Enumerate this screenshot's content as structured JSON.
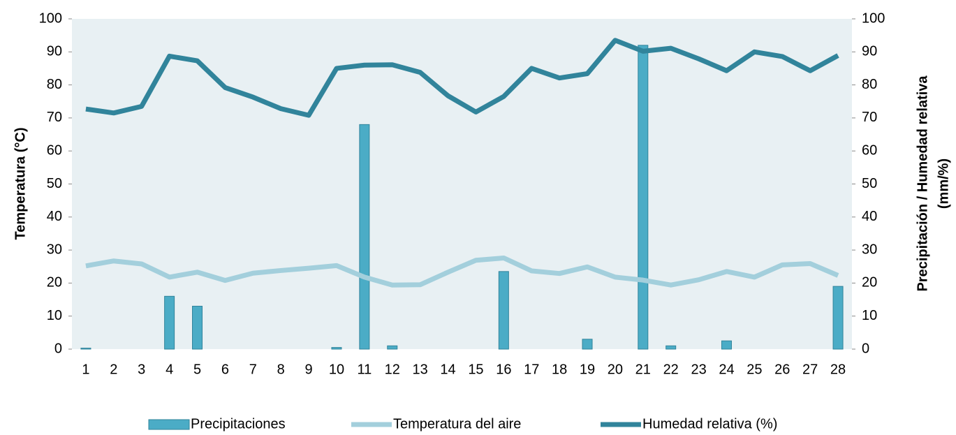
{
  "chart_data": {
    "type": "combo",
    "ylabel": "Temperatura (°C)",
    "y2label": [
      "Precipitación / Humedad relativa",
      "(mm/%)"
    ],
    "categories": [
      "1",
      "2",
      "3",
      "4",
      "5",
      "6",
      "7",
      "8",
      "9",
      "10",
      "11",
      "12",
      "13",
      "14",
      "15",
      "16",
      "17",
      "18",
      "19",
      "20",
      "21",
      "22",
      "23",
      "24",
      "25",
      "26",
      "27",
      "28"
    ],
    "ylim": [
      0,
      100
    ],
    "yticks": [
      0,
      10,
      20,
      30,
      40,
      50,
      60,
      70,
      80,
      90,
      100
    ],
    "y2lim": [
      0,
      100
    ],
    "y2ticks": [
      0,
      10,
      20,
      30,
      40,
      50,
      60,
      70,
      80,
      90,
      100
    ],
    "plot_background": "#e8f0f3",
    "legend": "bottom",
    "series": [
      {
        "name": "Precipitaciones",
        "type": "bar",
        "axis": "y2",
        "color": "#4bacc6",
        "edgecolor": "#31849b",
        "values": [
          0.3,
          0,
          0,
          16,
          13,
          0,
          0,
          0,
          0,
          0.5,
          68,
          1,
          0,
          0,
          0,
          23.5,
          0,
          0,
          3,
          0,
          92,
          1,
          0,
          2.5,
          0,
          0,
          0,
          19
        ]
      },
      {
        "name": "Temperatura del aire",
        "type": "line",
        "axis": "y",
        "color": "#a3cfdc",
        "values": [
          25.2,
          26.7,
          25.8,
          21.8,
          23.3,
          20.8,
          23.0,
          23.8,
          24.5,
          25.3,
          21.8,
          19.4,
          19.5,
          23.3,
          26.9,
          27.6,
          23.7,
          22.9,
          24.9,
          21.8,
          20.9,
          19.4,
          21.0,
          23.5,
          21.8,
          25.5,
          25.9,
          22.3
        ]
      },
      {
        "name": "Humedad relativa (%)",
        "type": "line",
        "axis": "y2",
        "color": "#31849b",
        "values": [
          72.7,
          71.5,
          73.5,
          88.7,
          87.3,
          79.2,
          76.3,
          72.8,
          70.8,
          85.0,
          86.0,
          86.1,
          83.8,
          76.7,
          71.8,
          76.5,
          85.0,
          82.1,
          83.4,
          93.5,
          90.2,
          91.1,
          87.9,
          84.3,
          90.0,
          88.6,
          84.3,
          88.9
        ]
      }
    ]
  }
}
